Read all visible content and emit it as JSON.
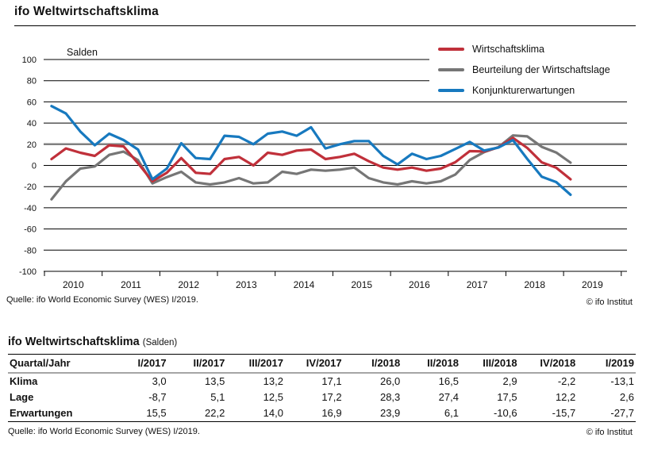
{
  "page": {
    "title": "ifo Weltwirtschaftsklima"
  },
  "chart": {
    "source": "Quelle: ifo World Economic Survey (WES) I/2019.",
    "copyright": "© ifo Institut",
    "legend_position": "top-right"
  },
  "chart_data": {
    "type": "line",
    "title": "ifo Weltwirtschaftsklima",
    "ylabel": "Salden",
    "ylim": [
      -100,
      100
    ],
    "y_ticks": [
      100,
      80,
      60,
      40,
      20,
      0,
      -20,
      -40,
      -60,
      -80,
      -100
    ],
    "grid": true,
    "highlight_gridline_value": 20,
    "x_year_labels": [
      "2010",
      "2011",
      "2012",
      "2013",
      "2014",
      "2015",
      "2016",
      "2017",
      "2018",
      "2019"
    ],
    "x_quarters": [
      "I/2010",
      "II/2010",
      "III/2010",
      "IV/2010",
      "I/2011",
      "II/2011",
      "III/2011",
      "IV/2011",
      "I/2012",
      "II/2012",
      "III/2012",
      "IV/2012",
      "I/2013",
      "II/2013",
      "III/2013",
      "IV/2013",
      "I/2014",
      "II/2014",
      "III/2014",
      "IV/2014",
      "I/2015",
      "II/2015",
      "III/2015",
      "IV/2015",
      "I/2016",
      "II/2016",
      "III/2016",
      "IV/2016",
      "I/2017",
      "II/2017",
      "III/2017",
      "IV/2017",
      "I/2018",
      "II/2018",
      "III/2018",
      "IV/2018",
      "I/2019"
    ],
    "series": [
      {
        "name": "Wirtschaftsklima",
        "color": "#c0303a",
        "values": [
          6,
          16,
          12,
          9,
          19,
          18,
          2,
          -15,
          -7,
          7,
          -7,
          -8,
          6,
          8,
          0,
          12,
          10,
          14,
          15,
          6,
          8,
          11,
          4,
          -2,
          -4,
          -2,
          -5,
          -3,
          3.0,
          13.5,
          13.2,
          17.1,
          26.0,
          16.5,
          2.9,
          -2.2,
          -13.1
        ]
      },
      {
        "name": "Beurteilung der Wirtschaftslage",
        "color": "#767676",
        "values": [
          -32,
          -15,
          -3,
          -1,
          10,
          13,
          5,
          -17,
          -11,
          -6,
          -16,
          -18,
          -16,
          -12,
          -17,
          -16,
          -6,
          -8,
          -4,
          -5,
          -4,
          -2,
          -12,
          -16,
          -18,
          -15,
          -17,
          -15,
          -8.7,
          5.1,
          12.5,
          17.2,
          28.3,
          27.4,
          17.5,
          12.2,
          2.6
        ]
      },
      {
        "name": "Konjunkturerwartungen",
        "color": "#1779bf",
        "values": [
          56,
          49,
          32,
          19,
          30,
          24,
          15,
          -13,
          -3,
          21,
          7,
          6,
          28,
          27,
          20,
          30,
          32,
          28,
          36,
          16,
          20,
          23,
          23,
          9,
          1,
          11,
          6,
          9,
          15.5,
          22.2,
          14.0,
          16.9,
          23.9,
          6.1,
          -10.6,
          -15.7,
          -27.7
        ]
      }
    ]
  },
  "table": {
    "heading": "ifo Weltwirtschaftsklima",
    "heading_suffix": "(Salden)",
    "columns": [
      "Quartal/Jahr",
      "I/2017",
      "II/2017",
      "III/2017",
      "IV/2017",
      "I/2018",
      "II/2018",
      "III/2018",
      "IV/2018",
      "I/2019"
    ],
    "rows": [
      {
        "label": "Klima",
        "values": [
          "3,0",
          "13,5",
          "13,2",
          "17,1",
          "26,0",
          "16,5",
          "2,9",
          "-2,2",
          "-13,1"
        ]
      },
      {
        "label": "Lage",
        "values": [
          "-8,7",
          "5,1",
          "12,5",
          "17,2",
          "28,3",
          "27,4",
          "17,5",
          "12,2",
          "2,6"
        ]
      },
      {
        "label": "Erwartungen",
        "values": [
          "15,5",
          "22,2",
          "14,0",
          "16,9",
          "23,9",
          "6,1",
          "-10,6",
          "-15,7",
          "-27,7"
        ]
      }
    ],
    "source": "Quelle: ifo World Economic Survey (WES) I/2019.",
    "copyright": "© ifo Institut"
  }
}
